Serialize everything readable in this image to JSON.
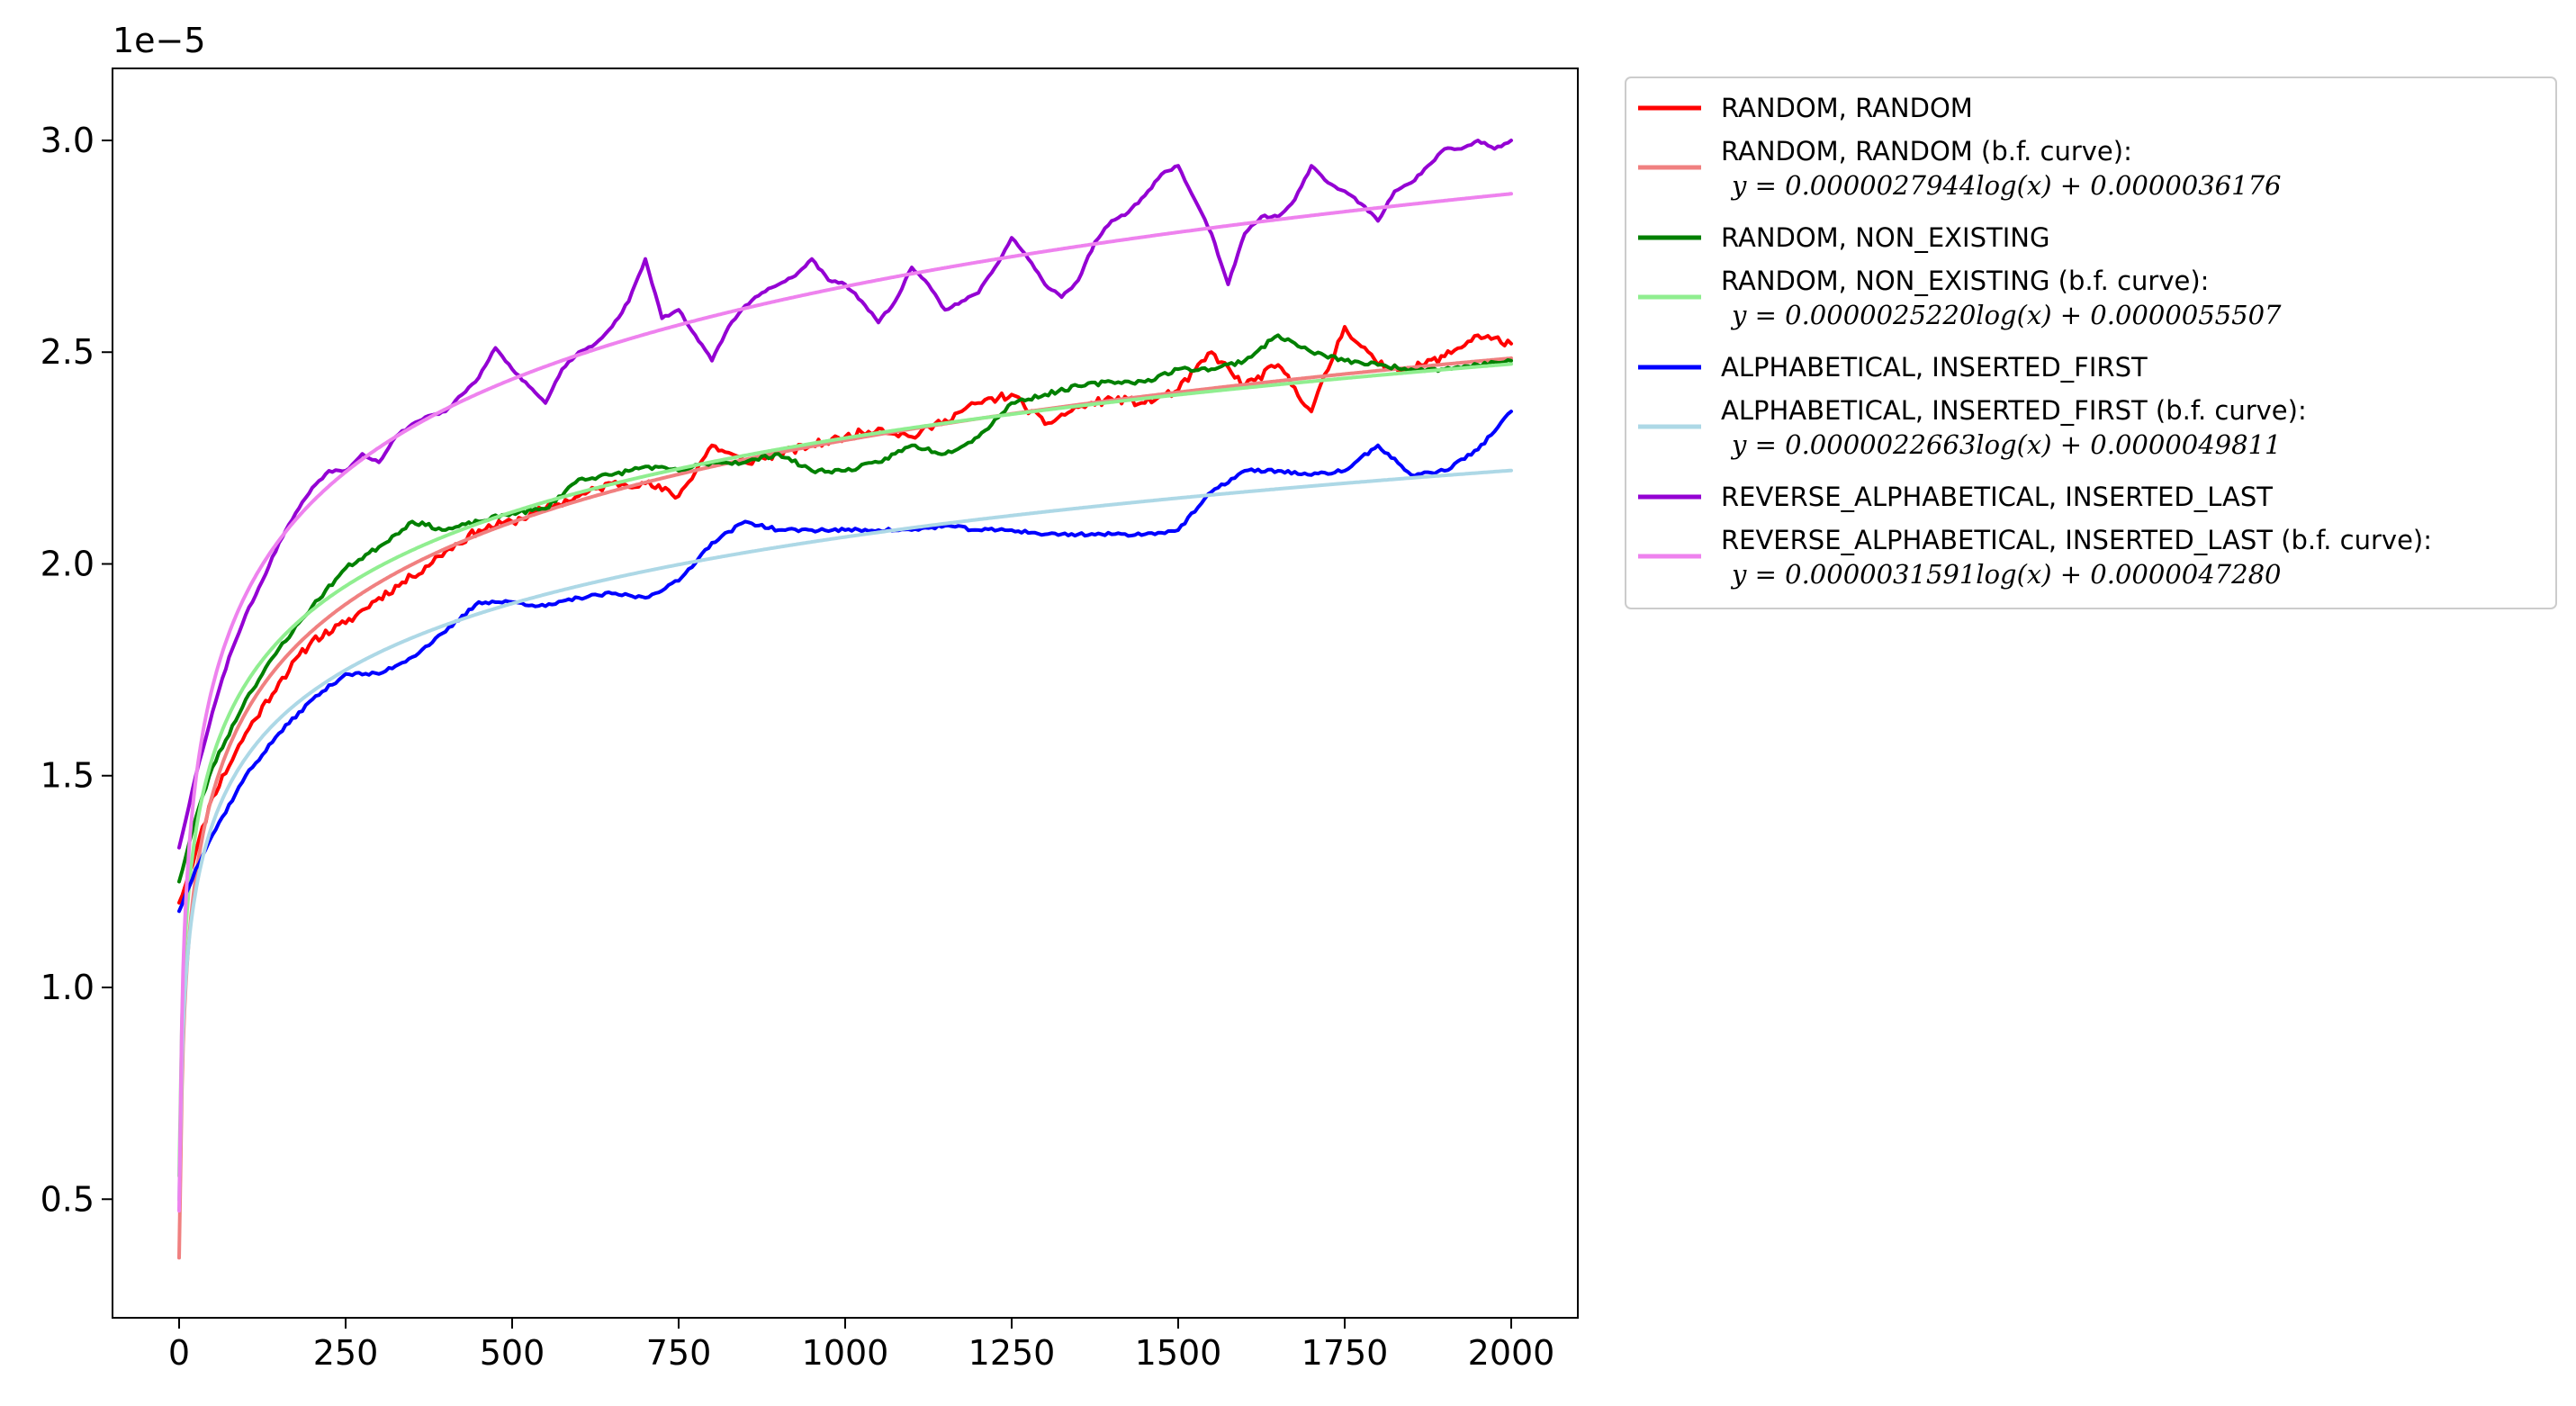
{
  "chart_data": {
    "type": "line",
    "offset_text": "1e−5",
    "xlim": [
      -100,
      2100
    ],
    "ylim": [
      2.2e-06,
      3.17e-05
    ],
    "x_ticks": [
      0,
      250,
      500,
      750,
      1000,
      1250,
      1500,
      1750,
      2000
    ],
    "x_tick_labels": [
      "0",
      "250",
      "500",
      "750",
      "1000",
      "1250",
      "1500",
      "1750",
      "2000"
    ],
    "y_ticks": [
      5e-06,
      1e-05,
      1.5e-05,
      2e-05,
      2.5e-05,
      3e-05
    ],
    "y_tick_labels": [
      "0.5",
      "1.0",
      "1.5",
      "2.0",
      "2.5",
      "3.0"
    ],
    "grid": false,
    "legend_position": "outside-right-top",
    "series": [
      {
        "name": "RANDOM, RANDOM",
        "kind": "data",
        "color": "#ff0000",
        "seed": 11,
        "noise": 1e-07,
        "x": [
          0,
          25,
          50,
          100,
          150,
          200,
          250,
          300,
          350,
          400,
          450,
          500,
          550,
          600,
          650,
          700,
          750,
          800,
          850,
          900,
          950,
          1000,
          1050,
          1100,
          1150,
          1200,
          1250,
          1300,
          1350,
          1400,
          1450,
          1500,
          1550,
          1600,
          1650,
          1700,
          1750,
          1800,
          1850,
          1900,
          1950,
          2000
        ],
        "y": [
          1.2e-05,
          1.32e-05,
          1.45e-05,
          1.6e-05,
          1.72e-05,
          1.82e-05,
          1.86e-05,
          1.92e-05,
          1.97e-05,
          2.03e-05,
          2.08e-05,
          2.1e-05,
          2.13e-05,
          2.16e-05,
          2.19e-05,
          2.19e-05,
          2.16e-05,
          2.28e-05,
          2.24e-05,
          2.26e-05,
          2.28e-05,
          2.3e-05,
          2.32e-05,
          2.3e-05,
          2.34e-05,
          2.38e-05,
          2.4e-05,
          2.33e-05,
          2.37e-05,
          2.39e-05,
          2.38e-05,
          2.41e-05,
          2.5e-05,
          2.42e-05,
          2.47e-05,
          2.36e-05,
          2.56e-05,
          2.47e-05,
          2.46e-05,
          2.49e-05,
          2.54e-05,
          2.52e-05
        ]
      },
      {
        "name": "RANDOM, RANDOM (b.f. curve):",
        "equation": "y = 0.0000027944log(x) + 0.0000036176",
        "kind": "fit",
        "color": "#f08080",
        "a": 2.7944e-06,
        "b": 3.6176e-06
      },
      {
        "name": "RANDOM, NON_EXISTING",
        "kind": "data",
        "color": "#008000",
        "seed": 23,
        "noise": 5e-08,
        "x": [
          0,
          25,
          50,
          100,
          150,
          200,
          250,
          300,
          350,
          400,
          450,
          500,
          550,
          600,
          650,
          700,
          750,
          800,
          850,
          900,
          950,
          1000,
          1050,
          1100,
          1150,
          1200,
          1250,
          1300,
          1350,
          1400,
          1450,
          1500,
          1550,
          1600,
          1650,
          1700,
          1750,
          1800,
          1850,
          1900,
          1950,
          2000
        ],
        "y": [
          1.25e-05,
          1.4e-05,
          1.52e-05,
          1.68e-05,
          1.8e-05,
          1.9e-05,
          1.99e-05,
          2.04e-05,
          2.1e-05,
          2.08e-05,
          2.1e-05,
          2.12e-05,
          2.13e-05,
          2.2e-05,
          2.21e-05,
          2.23e-05,
          2.22e-05,
          2.24e-05,
          2.24e-05,
          2.26e-05,
          2.22e-05,
          2.22e-05,
          2.24e-05,
          2.28e-05,
          2.26e-05,
          2.3e-05,
          2.38e-05,
          2.4e-05,
          2.42e-05,
          2.43e-05,
          2.43e-05,
          2.46e-05,
          2.46e-05,
          2.48e-05,
          2.54e-05,
          2.5e-05,
          2.48e-05,
          2.47e-05,
          2.46e-05,
          2.46e-05,
          2.47e-05,
          2.48e-05
        ]
      },
      {
        "name": "RANDOM, NON_EXISTING (b.f. curve):",
        "equation": "y = 0.0000025220log(x) + 0.0000055507",
        "kind": "fit",
        "color": "#90ee90",
        "a": 2.522e-06,
        "b": 5.5507e-06
      },
      {
        "name": "ALPHABETICAL, INSERTED_FIRST",
        "kind": "data",
        "color": "#0000ff",
        "seed": 37,
        "noise": 4e-08,
        "x": [
          0,
          25,
          50,
          100,
          150,
          200,
          250,
          300,
          350,
          400,
          450,
          500,
          550,
          600,
          650,
          700,
          750,
          800,
          850,
          900,
          950,
          1000,
          1050,
          1100,
          1150,
          1200,
          1250,
          1300,
          1350,
          1400,
          1450,
          1500,
          1550,
          1600,
          1650,
          1700,
          1750,
          1800,
          1850,
          1900,
          1950,
          2000
        ],
        "y": [
          1.18e-05,
          1.28e-05,
          1.36e-05,
          1.5e-05,
          1.6e-05,
          1.68e-05,
          1.74e-05,
          1.74e-05,
          1.78e-05,
          1.84e-05,
          1.91e-05,
          1.91e-05,
          1.9e-05,
          1.92e-05,
          1.93e-05,
          1.92e-05,
          1.96e-05,
          2.05e-05,
          2.1e-05,
          2.08e-05,
          2.08e-05,
          2.08e-05,
          2.08e-05,
          2.08e-05,
          2.09e-05,
          2.08e-05,
          2.08e-05,
          2.07e-05,
          2.07e-05,
          2.07e-05,
          2.07e-05,
          2.08e-05,
          2.17e-05,
          2.22e-05,
          2.22e-05,
          2.21e-05,
          2.22e-05,
          2.28e-05,
          2.21e-05,
          2.22e-05,
          2.27e-05,
          2.36e-05
        ]
      },
      {
        "name": "ALPHABETICAL, INSERTED_FIRST (b.f. curve):",
        "equation": "y = 0.0000022663log(x) + 0.0000049811",
        "kind": "fit",
        "color": "#add8e6",
        "a": 2.2663e-06,
        "b": 4.9811e-06
      },
      {
        "name": "REVERSE_ALPHABETICAL, INSERTED_LAST",
        "kind": "data",
        "color": "#9400d3",
        "seed": 53,
        "noise": 3e-08,
        "x": [
          0,
          25,
          50,
          75,
          100,
          125,
          150,
          175,
          200,
          225,
          250,
          275,
          300,
          325,
          350,
          375,
          400,
          425,
          450,
          475,
          500,
          525,
          550,
          575,
          600,
          625,
          650,
          675,
          700,
          725,
          750,
          775,
          800,
          825,
          850,
          875,
          900,
          925,
          950,
          975,
          1000,
          1025,
          1050,
          1075,
          1100,
          1125,
          1150,
          1175,
          1200,
          1225,
          1250,
          1275,
          1300,
          1325,
          1350,
          1375,
          1400,
          1425,
          1450,
          1475,
          1500,
          1525,
          1550,
          1575,
          1600,
          1625,
          1650,
          1675,
          1700,
          1725,
          1750,
          1775,
          1800,
          1825,
          1850,
          1875,
          1900,
          1925,
          1950,
          1975,
          2000
        ],
        "y": [
          1.33e-05,
          1.5e-05,
          1.65e-05,
          1.78e-05,
          1.88e-05,
          1.96e-05,
          2.05e-05,
          2.12e-05,
          2.18e-05,
          2.22e-05,
          2.22e-05,
          2.26e-05,
          2.24e-05,
          2.3e-05,
          2.33e-05,
          2.35e-05,
          2.36e-05,
          2.4e-05,
          2.44e-05,
          2.51e-05,
          2.46e-05,
          2.42e-05,
          2.38e-05,
          2.46e-05,
          2.5e-05,
          2.52e-05,
          2.56e-05,
          2.62e-05,
          2.72e-05,
          2.58e-05,
          2.6e-05,
          2.54e-05,
          2.48e-05,
          2.56e-05,
          2.61e-05,
          2.64e-05,
          2.66e-05,
          2.68e-05,
          2.72e-05,
          2.67e-05,
          2.66e-05,
          2.62e-05,
          2.57e-05,
          2.62e-05,
          2.7e-05,
          2.66e-05,
          2.6e-05,
          2.62e-05,
          2.64e-05,
          2.7e-05,
          2.77e-05,
          2.72e-05,
          2.66e-05,
          2.63e-05,
          2.67e-05,
          2.76e-05,
          2.81e-05,
          2.83e-05,
          2.87e-05,
          2.92e-05,
          2.94e-05,
          2.86e-05,
          2.78e-05,
          2.66e-05,
          2.78e-05,
          2.82e-05,
          2.82e-05,
          2.86e-05,
          2.94e-05,
          2.9e-05,
          2.88e-05,
          2.85e-05,
          2.81e-05,
          2.88e-05,
          2.9e-05,
          2.94e-05,
          2.98e-05,
          2.98e-05,
          3e-05,
          2.98e-05,
          3e-05
        ]
      },
      {
        "name": "REVERSE_ALPHABETICAL, INSERTED_LAST (b.f. curve):",
        "equation": "y = 0.0000031591log(x) + 0.0000047280",
        "kind": "fit",
        "color": "#ee82ee",
        "a": 3.1591e-06,
        "b": 4.728e-06
      }
    ]
  }
}
